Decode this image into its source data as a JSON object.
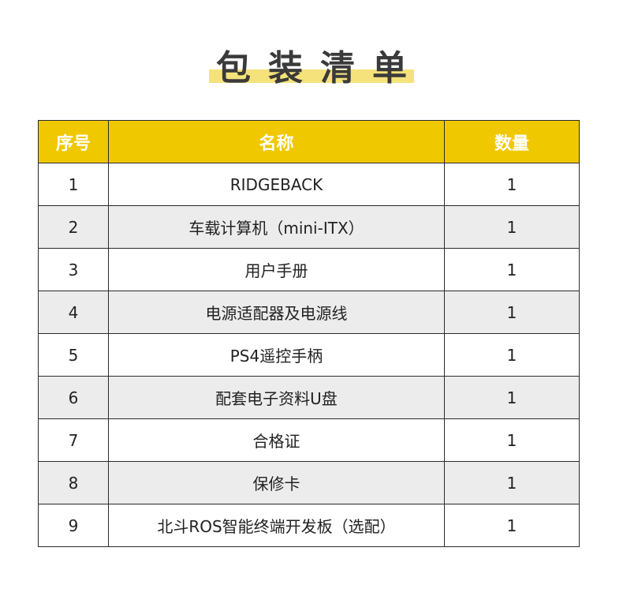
{
  "title": "包装清单",
  "table": {
    "header": [
      "序号",
      "名称",
      "数量"
    ],
    "rows": [
      [
        "1",
        "RIDGEBACK",
        "1"
      ],
      [
        "2",
        "车载计算机（mini-ITX）",
        "1"
      ],
      [
        "3",
        "用户手册",
        "1"
      ],
      [
        "4",
        "电源适配器及电源线",
        "1"
      ],
      [
        "5",
        "PS4遥控手柄",
        "1"
      ],
      [
        "6",
        "配套电子资料U盘",
        "1"
      ],
      [
        "7",
        "合格证",
        "1"
      ],
      [
        "8",
        "保修卡",
        "1"
      ],
      [
        "9",
        "北斗ROS智能终端开发板（选配）",
        "1"
      ]
    ]
  }
}
